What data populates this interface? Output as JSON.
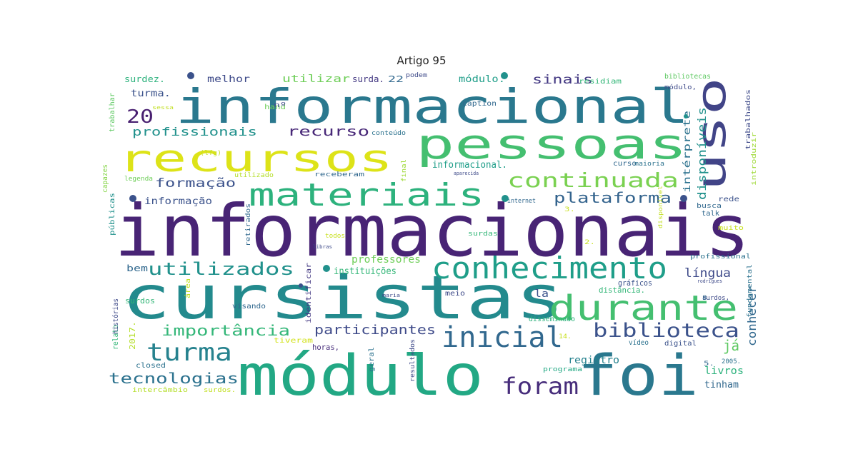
{
  "title": "Artigo 95",
  "words": [
    {
      "text": "informacionais",
      "color": "#482475"
    },
    {
      "text": "informacional",
      "color": "#2a788e"
    },
    {
      "text": "cursistas",
      "color": "#238a8d"
    },
    {
      "text": "módulo",
      "color": "#22a884"
    },
    {
      "text": "foi",
      "color": "#2a788e"
    },
    {
      "text": "pessoas",
      "color": "#44bf70"
    },
    {
      "text": "recursos",
      "color": "#dde318"
    },
    {
      "text": "materiais",
      "color": "#2db27d"
    },
    {
      "text": "uso",
      "color": "#414487"
    },
    {
      "text": "durante",
      "color": "#44bf70"
    },
    {
      "text": "conhecimento",
      "color": "#1f9e89"
    },
    {
      "text": "continuada",
      "color": "#7ad151"
    },
    {
      "text": "inicial",
      "color": "#31688e"
    },
    {
      "text": "biblioteca",
      "color": "#3b528b"
    },
    {
      "text": "utilizados",
      "color": "#21918c"
    },
    {
      "text": "turma",
      "color": "#26828e"
    },
    {
      "text": "foram",
      "color": "#472d7b"
    },
    {
      "text": "tecnologias",
      "color": "#2c728e"
    },
    {
      "text": "importância",
      "color": "#35b779"
    },
    {
      "text": "plataforma",
      "color": "#33638d"
    },
    {
      "text": "participantes",
      "color": "#3e4a89"
    },
    {
      "text": "profissionais",
      "color": "#21918c"
    },
    {
      "text": "recurso",
      "color": "#482878"
    },
    {
      "text": "formação",
      "color": "#3b528b"
    },
    {
      "text": "sinais",
      "color": "#443983"
    },
    {
      "text": "20",
      "color": "#481f70"
    },
    {
      "text": "língua",
      "color": "#3e4a89"
    },
    {
      "text": "conhecer",
      "color": "#31688e"
    },
    {
      "text": "disponíveis",
      "color": "#21918c"
    },
    {
      "text": "intérprete",
      "color": "#2c728e"
    },
    {
      "text": "já",
      "color": "#5ec962"
    },
    {
      "text": "livros",
      "color": "#2db27d"
    },
    {
      "text": "tinham",
      "color": "#31688e"
    },
    {
      "text": "registro",
      "color": "#26828e"
    },
    {
      "text": "informacional.",
      "color": "#1f9e89"
    },
    {
      "text": "professores",
      "color": "#6ece58"
    },
    {
      "text": "instituições",
      "color": "#35b779"
    },
    {
      "text": "informação",
      "color": "#3b528b"
    },
    {
      "text": "melhor",
      "color": "#3e4a89"
    },
    {
      "text": "utilizar",
      "color": "#6ece58"
    },
    {
      "text": "surda.",
      "color": "#443983"
    },
    {
      "text": "22",
      "color": "#31688e"
    },
    {
      "text": "módulo.",
      "color": "#1f9e89"
    },
    {
      "text": "turma.",
      "color": "#3b528b"
    },
    {
      "text": "surdez.",
      "color": "#2db27d"
    },
    {
      "text": "bem",
      "color": "#31688e"
    },
    {
      "text": "la",
      "color": "#3b528b"
    },
    {
      "text": "2017.",
      "color": "#b5de2b"
    },
    {
      "text": "relato",
      "color": "#35b779"
    },
    {
      "text": "histórias",
      "color": "#3e4a89"
    },
    {
      "text": "públicas",
      "color": "#21918c"
    },
    {
      "text": "capazes",
      "color": "#86d549"
    },
    {
      "text": "trabalhar",
      "color": "#5ec962"
    },
    {
      "text": "surdos",
      "color": "#35b779"
    },
    {
      "text": "closed",
      "color": "#2c728e"
    },
    {
      "text": "intercâmbio",
      "color": "#b5de2b"
    },
    {
      "text": "surdos.",
      "color": "#c2df23"
    },
    {
      "text": "visando",
      "color": "#31688e"
    },
    {
      "text": "horas,",
      "color": "#472d7b"
    },
    {
      "text": "geral",
      "color": "#2c728e"
    },
    {
      "text": "resultados",
      "color": "#3e4a89"
    },
    {
      "text": "programa",
      "color": "#22a884"
    },
    {
      "text": "tiveram",
      "color": "#d2e21b"
    },
    {
      "text": "vídeo",
      "color": "#2c728e"
    },
    {
      "text": "digital",
      "color": "#3b528b"
    },
    {
      "text": "gráficos",
      "color": "#3b528b"
    },
    {
      "text": "distância.",
      "color": "#35b779"
    },
    {
      "text": "meio",
      "color": "#3e4a89"
    },
    {
      "text": "disseminado",
      "color": "#2db27d"
    },
    {
      "text": "caption",
      "color": "#31688e"
    },
    {
      "text": "podem",
      "color": "#3e4a89"
    },
    {
      "text": "conteúdo",
      "color": "#2c728e"
    },
    {
      "text": "receberam",
      "color": "#31688e"
    },
    {
      "text": "utilizado",
      "color": "#b5de2b"
    },
    {
      "text": "legenda",
      "color": "#6ece58"
    },
    {
      "text": "final",
      "color": "#a0da39"
    },
    {
      "text": "curso",
      "color": "#31688e"
    },
    {
      "text": "maioria",
      "color": "#2c728e"
    },
    {
      "text": "internet",
      "color": "#31688e"
    },
    {
      "text": "residiam",
      "color": "#35b779"
    },
    {
      "text": "bibliotecas",
      "color": "#5ec962"
    },
    {
      "text": "módulo,",
      "color": "#3e4a89"
    },
    {
      "text": "trabalhados",
      "color": "#3e4a89"
    },
    {
      "text": "introduzir",
      "color": "#a0da39"
    },
    {
      "text": "rede",
      "color": "#3b528b"
    },
    {
      "text": "busca",
      "color": "#31688e"
    },
    {
      "text": "talk",
      "color": "#31688e"
    },
    {
      "text": "muito",
      "color": "#c8e020"
    },
    {
      "text": "profissional",
      "color": "#2c728e"
    },
    {
      "text": "fundamental",
      "color": "#2c728e"
    },
    {
      "text": "surdos,",
      "color": "#3e4a89"
    },
    {
      "text": "2005.",
      "color": "#2c728e"
    },
    {
      "text": "identificar",
      "color": "#443983"
    },
    {
      "text": "retirados",
      "color": "#31688e"
    },
    {
      "text": "todos",
      "color": "#c8e020"
    },
    {
      "text": "surdas",
      "color": "#35b779"
    },
    {
      "text": "área",
      "color": "#c2df23"
    },
    {
      "text": "hand",
      "color": "#6ece58"
    },
    {
      "text": "nº",
      "color": "#3e4a89"
    },
    {
      "text": "disponível",
      "color": "#c2df23"
    },
    {
      "text": "aparecida",
      "color": "#3e4a89"
    },
    {
      "text": "rodrigues",
      "color": "#3e4a89"
    },
    {
      "text": "maria",
      "color": "#3e4a89"
    },
    {
      "text": "libras",
      "color": "#3e4a89"
    },
    {
      "text": "2.",
      "color": "#c8e020"
    },
    {
      "text": "3.",
      "color": "#c8e020"
    },
    {
      "text": "5.",
      "color": "#31688e"
    },
    {
      "text": "8.",
      "color": "#31688e"
    },
    {
      "text": "14.",
      "color": "#c8e020"
    },
    {
      "text": "(lfg)",
      "color": "#c2df23"
    },
    {
      "text": "sessa",
      "color": "#c2df23"
    }
  ]
}
